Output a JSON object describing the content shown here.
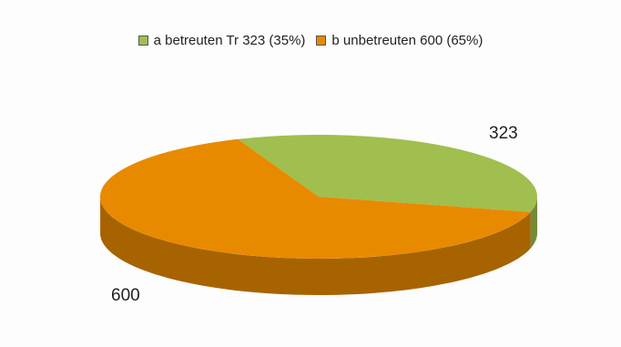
{
  "chart_data": {
    "type": "pie",
    "categories": [
      "a betreuten Tr",
      "b unbetreuten"
    ],
    "values": [
      323,
      600
    ],
    "percent": [
      35,
      65
    ],
    "legend": [
      "a betreuten Tr 323 (35%)",
      "b unbetreuten 600 (65%)"
    ],
    "data_labels": [
      "323",
      "600"
    ],
    "colors": [
      "#a0bf4e",
      "#e88a00"
    ],
    "legend_position": "top",
    "style": "3d"
  }
}
